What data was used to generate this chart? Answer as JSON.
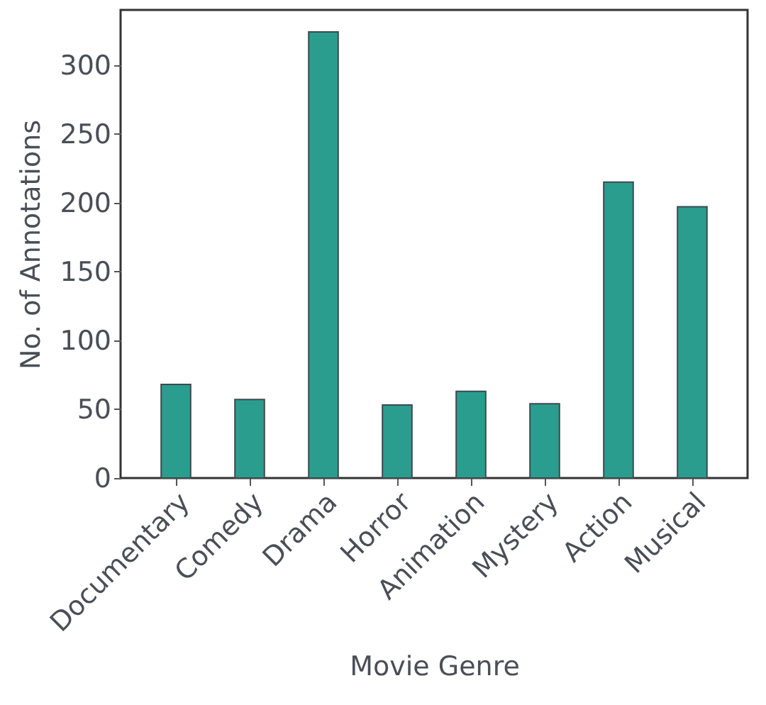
{
  "chart_data": {
    "type": "bar",
    "xlabel": "Movie Genre",
    "ylabel": "No. of Annotations",
    "categories": [
      "Documentary",
      "Comedy",
      "Drama",
      "Horror",
      "Animation",
      "Mystery",
      "Action",
      "Musical"
    ],
    "values": [
      68,
      57,
      324,
      53,
      63,
      54,
      215,
      197
    ],
    "color": "#2a9d8f",
    "ylim": [
      0,
      340
    ],
    "yticks": [
      0,
      50,
      100,
      150,
      200,
      250,
      300
    ],
    "grid": false
  }
}
